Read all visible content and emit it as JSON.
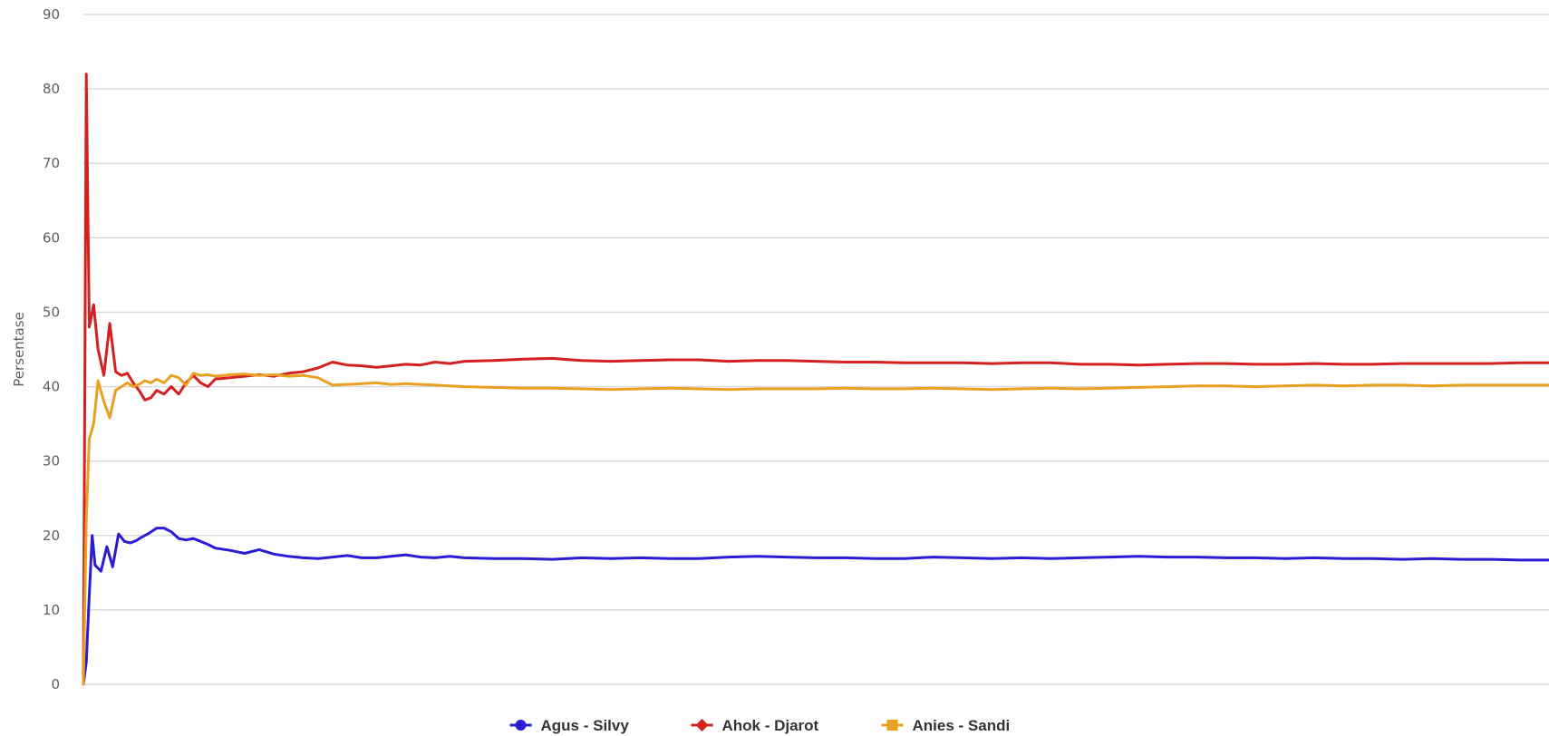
{
  "chart_data": {
    "type": "line",
    "title": "",
    "xlabel": "",
    "ylabel": "Persentase",
    "ylim": [
      0,
      90
    ],
    "yticks": [
      0,
      10,
      20,
      30,
      40,
      50,
      60,
      70,
      80,
      90
    ],
    "grid": true,
    "legend_position": "bottom-center",
    "x_range": [
      0,
      100
    ],
    "series": [
      {
        "name": "Agus - Silvy",
        "color": "#2b1bd4",
        "marker": "circle",
        "x": [
          0,
          0.2,
          0.4,
          0.6,
          0.8,
          1.2,
          1.6,
          2.0,
          2.4,
          2.8,
          3.2,
          3.6,
          4.0,
          4.4,
          5.0,
          5.5,
          6.0,
          6.5,
          7.0,
          7.5,
          8.0,
          8.5,
          9.0,
          10.0,
          11.0,
          12.0,
          13.0,
          14.0,
          15.0,
          16.0,
          17.0,
          18.0,
          19.0,
          20.0,
          21.0,
          22.0,
          23.0,
          24.0,
          25.0,
          26.0,
          28.0,
          30.0,
          32.0,
          34.0,
          36.0,
          38.0,
          40.0,
          42.0,
          44.0,
          46.0,
          48.0,
          50.0,
          52.0,
          54.0,
          56.0,
          58.0,
          60.0,
          62.0,
          64.0,
          66.0,
          68.0,
          70.0,
          72.0,
          74.0,
          76.0,
          78.0,
          80.0,
          82.0,
          84.0,
          86.0,
          88.0,
          90.0,
          92.0,
          94.0,
          96.0,
          98.0,
          100.0
        ],
        "values": [
          0,
          3,
          12,
          20,
          16,
          15.2,
          18.5,
          15.8,
          20.2,
          19.2,
          19.0,
          19.3,
          19.8,
          20.2,
          21.0,
          21.0,
          20.5,
          19.6,
          19.4,
          19.6,
          19.2,
          18.8,
          18.3,
          18.0,
          17.6,
          18.1,
          17.5,
          17.2,
          17.0,
          16.9,
          17.1,
          17.3,
          17.0,
          17.0,
          17.2,
          17.4,
          17.1,
          17.0,
          17.2,
          17.0,
          16.9,
          16.9,
          16.8,
          17.0,
          16.9,
          17.0,
          16.9,
          16.9,
          17.1,
          17.2,
          17.1,
          17.0,
          17.0,
          16.9,
          16.9,
          17.1,
          17.0,
          16.9,
          17.0,
          16.9,
          17.0,
          17.1,
          17.2,
          17.1,
          17.1,
          17.0,
          17.0,
          16.9,
          17.0,
          16.9,
          16.9,
          16.8,
          16.9,
          16.8,
          16.8,
          16.7,
          16.7
        ]
      },
      {
        "name": "Ahok - Djarot",
        "color": "#d4201f",
        "marker": "diamond",
        "x": [
          0,
          0.2,
          0.4,
          0.7,
          1.0,
          1.4,
          1.8,
          2.2,
          2.6,
          3.0,
          3.4,
          3.8,
          4.2,
          4.6,
          5.0,
          5.5,
          6.0,
          6.5,
          7.0,
          7.5,
          8.0,
          8.5,
          9.0,
          10.0,
          11.0,
          12.0,
          13.0,
          14.0,
          15.0,
          16.0,
          17.0,
          18.0,
          19.0,
          20.0,
          21.0,
          22.0,
          23.0,
          24.0,
          25.0,
          26.0,
          28.0,
          30.0,
          32.0,
          34.0,
          36.0,
          38.0,
          40.0,
          42.0,
          44.0,
          46.0,
          48.0,
          50.0,
          52.0,
          54.0,
          56.0,
          58.0,
          60.0,
          62.0,
          64.0,
          66.0,
          68.0,
          70.0,
          72.0,
          74.0,
          76.0,
          78.0,
          80.0,
          82.0,
          84.0,
          86.0,
          88.0,
          90.0,
          92.0,
          94.0,
          96.0,
          98.0,
          100.0
        ],
        "values": [
          0,
          82,
          48,
          51,
          45,
          41.5,
          48.5,
          42.0,
          41.5,
          41.8,
          40.5,
          39.5,
          38.2,
          38.5,
          39.5,
          39.0,
          40.0,
          39.0,
          40.5,
          41.5,
          40.5,
          40.0,
          41.0,
          41.2,
          41.4,
          41.6,
          41.4,
          41.8,
          42.0,
          42.5,
          43.3,
          42.9,
          42.8,
          42.6,
          42.8,
          43.0,
          42.9,
          43.3,
          43.1,
          43.4,
          43.5,
          43.7,
          43.8,
          43.5,
          43.4,
          43.5,
          43.6,
          43.6,
          43.4,
          43.5,
          43.5,
          43.4,
          43.3,
          43.3,
          43.2,
          43.2,
          43.2,
          43.1,
          43.2,
          43.2,
          43.0,
          43.0,
          42.9,
          43.0,
          43.1,
          43.1,
          43.0,
          43.0,
          43.1,
          43.0,
          43.0,
          43.1,
          43.1,
          43.1,
          43.1,
          43.2,
          43.2
        ]
      },
      {
        "name": "Anies - Sandi",
        "color": "#e8a020",
        "marker": "square",
        "x": [
          0,
          0.2,
          0.4,
          0.7,
          1.0,
          1.4,
          1.8,
          2.2,
          2.6,
          3.0,
          3.4,
          3.8,
          4.2,
          4.6,
          5.0,
          5.5,
          6.0,
          6.5,
          7.0,
          7.5,
          8.0,
          8.5,
          9.0,
          10.0,
          11.0,
          12.0,
          13.0,
          14.0,
          15.0,
          16.0,
          17.0,
          18.0,
          19.0,
          20.0,
          21.0,
          22.0,
          23.0,
          24.0,
          25.0,
          26.0,
          28.0,
          30.0,
          32.0,
          34.0,
          36.0,
          38.0,
          40.0,
          42.0,
          44.0,
          46.0,
          48.0,
          50.0,
          52.0,
          54.0,
          56.0,
          58.0,
          60.0,
          62.0,
          64.0,
          66.0,
          68.0,
          70.0,
          72.0,
          74.0,
          76.0,
          78.0,
          80.0,
          82.0,
          84.0,
          86.0,
          88.0,
          90.0,
          92.0,
          94.0,
          96.0,
          98.0,
          100.0
        ],
        "values": [
          0,
          22,
          33,
          35,
          40.8,
          38.0,
          35.8,
          39.5,
          40.0,
          40.5,
          40.0,
          40.3,
          40.8,
          40.5,
          41.0,
          40.5,
          41.5,
          41.2,
          40.2,
          41.8,
          41.5,
          41.6,
          41.4,
          41.6,
          41.7,
          41.5,
          41.6,
          41.4,
          41.5,
          41.2,
          40.2,
          40.3,
          40.4,
          40.5,
          40.3,
          40.4,
          40.3,
          40.2,
          40.1,
          40.0,
          39.9,
          39.8,
          39.8,
          39.7,
          39.6,
          39.7,
          39.8,
          39.7,
          39.6,
          39.7,
          39.7,
          39.7,
          39.8,
          39.7,
          39.7,
          39.8,
          39.7,
          39.6,
          39.7,
          39.8,
          39.7,
          39.8,
          39.9,
          40.0,
          40.1,
          40.1,
          40.0,
          40.1,
          40.2,
          40.1,
          40.2,
          40.2,
          40.1,
          40.2,
          40.2,
          40.2,
          40.2
        ]
      }
    ]
  }
}
